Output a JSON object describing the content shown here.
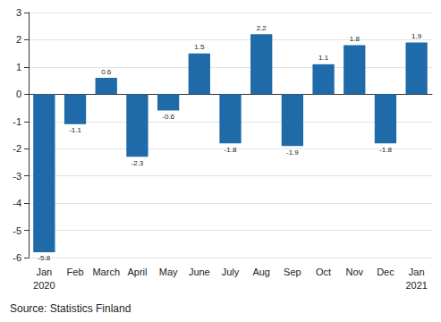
{
  "chart_data": {
    "type": "bar",
    "categories": [
      "Jan\n2020",
      "Feb",
      "March",
      "April",
      "May",
      "June",
      "July",
      "Aug",
      "Sep",
      "Oct",
      "Nov",
      "Dec",
      "Jan\n2021"
    ],
    "values": [
      -5.8,
      -1.1,
      0.6,
      -2.3,
      -0.6,
      1.5,
      -1.8,
      2.2,
      -1.9,
      1.1,
      1.8,
      -1.8,
      1.9
    ],
    "color": "#1f6aa8",
    "ylim": [
      -6,
      3
    ],
    "yticks": [
      -6,
      -5,
      -4,
      -3,
      -2,
      -1,
      0,
      1,
      2,
      3
    ],
    "grid": true,
    "data_labels": true,
    "annotation": "Source: Statistics Finland"
  }
}
